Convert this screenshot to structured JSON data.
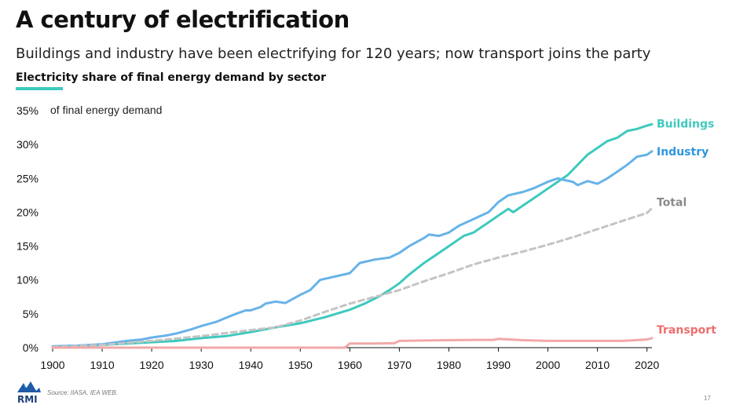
{
  "header": {
    "title": "A century of electrification",
    "subtitle": "Buildings and industry have been electrifying for 120 years; now transport joins the party",
    "chart_heading": "Electricity share of final energy demand by sector"
  },
  "footer": {
    "source": "Source: IIASA, IEA WEB.",
    "logo_text": "RMI",
    "page_number": "17"
  },
  "chart_data": {
    "type": "line",
    "unit_label": "of final energy demand",
    "xlim": [
      1900,
      2021
    ],
    "ylim": [
      0,
      35
    ],
    "x_ticks": [
      1900,
      1910,
      1920,
      1930,
      1940,
      1950,
      1960,
      1970,
      1980,
      1990,
      2000,
      2010,
      2020
    ],
    "y_ticks": [
      0,
      5,
      10,
      15,
      20,
      25,
      30,
      35
    ],
    "y_tick_labels": [
      "0%",
      "5%",
      "10%",
      "15%",
      "20%",
      "25%",
      "30%",
      "35%"
    ],
    "grid": false,
    "legend": "direct labels at line ends",
    "series": [
      {
        "name": "Buildings",
        "color": "#3ec9be",
        "dash": false,
        "points": [
          [
            1900,
            0.1
          ],
          [
            1905,
            0.2
          ],
          [
            1910,
            0.4
          ],
          [
            1915,
            0.6
          ],
          [
            1920,
            0.8
          ],
          [
            1925,
            1.0
          ],
          [
            1930,
            1.4
          ],
          [
            1935,
            1.7
          ],
          [
            1940,
            2.3
          ],
          [
            1945,
            3.0
          ],
          [
            1950,
            3.6
          ],
          [
            1955,
            4.5
          ],
          [
            1960,
            5.6
          ],
          [
            1963,
            6.5
          ],
          [
            1966,
            7.6
          ],
          [
            1968,
            8.5
          ],
          [
            1970,
            9.5
          ],
          [
            1972,
            10.8
          ],
          [
            1975,
            12.5
          ],
          [
            1978,
            14.0
          ],
          [
            1980,
            15.0
          ],
          [
            1983,
            16.5
          ],
          [
            1985,
            17.0
          ],
          [
            1988,
            18.5
          ],
          [
            1990,
            19.5
          ],
          [
            1992,
            20.5
          ],
          [
            1993,
            20.0
          ],
          [
            1995,
            21.0
          ],
          [
            1998,
            22.5
          ],
          [
            2000,
            23.5
          ],
          [
            2002,
            24.5
          ],
          [
            2004,
            25.5
          ],
          [
            2006,
            27.0
          ],
          [
            2008,
            28.5
          ],
          [
            2010,
            29.5
          ],
          [
            2012,
            30.5
          ],
          [
            2014,
            31.0
          ],
          [
            2016,
            32.0
          ],
          [
            2018,
            32.3
          ],
          [
            2020,
            32.8
          ],
          [
            2021,
            33.0
          ]
        ]
      },
      {
        "name": "Industry",
        "color": "#67b3e8",
        "dash": false,
        "points": [
          [
            1900,
            0.2
          ],
          [
            1905,
            0.3
          ],
          [
            1910,
            0.5
          ],
          [
            1913,
            0.8
          ],
          [
            1915,
            1.0
          ],
          [
            1918,
            1.2
          ],
          [
            1920,
            1.5
          ],
          [
            1923,
            1.8
          ],
          [
            1925,
            2.1
          ],
          [
            1928,
            2.7
          ],
          [
            1930,
            3.2
          ],
          [
            1933,
            3.8
          ],
          [
            1935,
            4.4
          ],
          [
            1937,
            5.0
          ],
          [
            1939,
            5.5
          ],
          [
            1940,
            5.5
          ],
          [
            1942,
            6.0
          ],
          [
            1943,
            6.5
          ],
          [
            1945,
            6.8
          ],
          [
            1947,
            6.6
          ],
          [
            1950,
            7.8
          ],
          [
            1952,
            8.5
          ],
          [
            1954,
            10.0
          ],
          [
            1957,
            10.5
          ],
          [
            1960,
            11.0
          ],
          [
            1962,
            12.5
          ],
          [
            1965,
            13.0
          ],
          [
            1968,
            13.3
          ],
          [
            1970,
            14.0
          ],
          [
            1972,
            15.0
          ],
          [
            1975,
            16.2
          ],
          [
            1976,
            16.7
          ],
          [
            1978,
            16.5
          ],
          [
            1980,
            17.0
          ],
          [
            1982,
            18.0
          ],
          [
            1985,
            19.0
          ],
          [
            1988,
            20.0
          ],
          [
            1990,
            21.5
          ],
          [
            1992,
            22.5
          ],
          [
            1995,
            23.0
          ],
          [
            1997,
            23.5
          ],
          [
            2000,
            24.5
          ],
          [
            2002,
            25.0
          ],
          [
            2003,
            24.8
          ],
          [
            2005,
            24.5
          ],
          [
            2006,
            24.0
          ],
          [
            2008,
            24.6
          ],
          [
            2010,
            24.2
          ],
          [
            2012,
            25.0
          ],
          [
            2014,
            26.0
          ],
          [
            2016,
            27.0
          ],
          [
            2018,
            28.2
          ],
          [
            2020,
            28.5
          ],
          [
            2021,
            29.0
          ]
        ]
      },
      {
        "name": "Total",
        "color": "#c4c4c4",
        "dash": true,
        "points": [
          [
            1900,
            0.1
          ],
          [
            1910,
            0.4
          ],
          [
            1920,
            1.0
          ],
          [
            1930,
            1.7
          ],
          [
            1940,
            2.6
          ],
          [
            1945,
            3.0
          ],
          [
            1950,
            4.0
          ],
          [
            1955,
            5.3
          ],
          [
            1960,
            6.5
          ],
          [
            1965,
            7.5
          ],
          [
            1970,
            8.5
          ],
          [
            1975,
            9.8
          ],
          [
            1980,
            11.0
          ],
          [
            1985,
            12.3
          ],
          [
            1990,
            13.3
          ],
          [
            1995,
            14.2
          ],
          [
            2000,
            15.2
          ],
          [
            2005,
            16.3
          ],
          [
            2010,
            17.5
          ],
          [
            2015,
            18.7
          ],
          [
            2020,
            19.9
          ],
          [
            2021,
            20.6
          ]
        ]
      },
      {
        "name": "Transport",
        "color": "#f2a8a8",
        "dash": false,
        "points": [
          [
            1900,
            0.0
          ],
          [
            1959,
            0.0
          ],
          [
            1960,
            0.6
          ],
          [
            1965,
            0.6
          ],
          [
            1969,
            0.65
          ],
          [
            1970,
            1.0
          ],
          [
            1975,
            1.05
          ],
          [
            1980,
            1.1
          ],
          [
            1985,
            1.15
          ],
          [
            1989,
            1.15
          ],
          [
            1990,
            1.3
          ],
          [
            1995,
            1.1
          ],
          [
            2000,
            1.0
          ],
          [
            2005,
            1.0
          ],
          [
            2010,
            1.0
          ],
          [
            2015,
            1.0
          ],
          [
            2020,
            1.2
          ],
          [
            2021,
            1.4
          ]
        ]
      }
    ]
  }
}
